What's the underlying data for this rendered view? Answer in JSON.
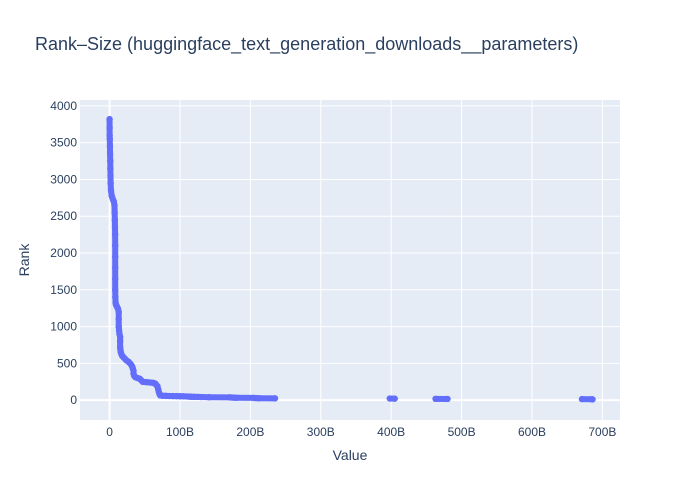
{
  "chart_data": {
    "type": "scatter",
    "title": "Rank–Size (huggingface_text_generation_downloads__parameters)",
    "xlabel": "Value",
    "ylabel": "Rank",
    "xlim": [
      -42000000000,
      725000000000
    ],
    "ylim": [
      -270,
      4080
    ],
    "x_ticks": [
      0,
      100000000000,
      200000000000,
      300000000000,
      400000000000,
      500000000000,
      600000000000,
      700000000000
    ],
    "x_tick_labels": [
      "0",
      "100B",
      "200B",
      "300B",
      "400B",
      "500B",
      "600B",
      "700B"
    ],
    "y_ticks": [
      0,
      500,
      1000,
      1500,
      2000,
      2500,
      3000,
      3500,
      4000
    ],
    "y_tick_labels": [
      "0",
      "500",
      "1000",
      "1500",
      "2000",
      "2500",
      "3000",
      "3500",
      "4000"
    ],
    "grid": true,
    "legend": "none",
    "colors": {
      "marker": "#636efa",
      "plot_bg": "#e5ecf6",
      "grid": "#ffffff",
      "text": "#2a3f5f"
    },
    "series": [
      {
        "points": [
          [
            0,
            3820
          ],
          [
            50000000,
            3700
          ],
          [
            100000000,
            3600
          ],
          [
            300000000,
            3550
          ],
          [
            500000000,
            3450
          ],
          [
            700000000,
            3350
          ],
          [
            1000000000,
            3250
          ],
          [
            1100000000,
            3150
          ],
          [
            1300000000,
            3050
          ],
          [
            1500000000,
            2950
          ],
          [
            2000000000,
            2850
          ],
          [
            3000000000,
            2780
          ],
          [
            4000000000,
            2750
          ],
          [
            5000000000,
            2720
          ],
          [
            6000000000,
            2700
          ],
          [
            7000000000,
            2650
          ],
          [
            7200000000,
            2550
          ],
          [
            7500000000,
            2450
          ],
          [
            7700000000,
            2350
          ],
          [
            7900000000,
            2250
          ],
          [
            8000000000,
            2100
          ],
          [
            8000000000,
            1950
          ],
          [
            8000000000,
            1800
          ],
          [
            8000000000,
            1650
          ],
          [
            8000000000,
            1500
          ],
          [
            8200000000,
            1400
          ],
          [
            8500000000,
            1330
          ],
          [
            9000000000,
            1300
          ],
          [
            10000000000,
            1280
          ],
          [
            11000000000,
            1260
          ],
          [
            12000000000,
            1240
          ],
          [
            13000000000,
            1200
          ],
          [
            13000000000,
            1100
          ],
          [
            13000000000,
            1000
          ],
          [
            13500000000,
            950
          ],
          [
            14000000000,
            900
          ],
          [
            15000000000,
            860
          ],
          [
            15000000000,
            800
          ],
          [
            15000000000,
            720
          ],
          [
            15500000000,
            680
          ],
          [
            16000000000,
            650
          ],
          [
            17000000000,
            620
          ],
          [
            18000000000,
            600
          ],
          [
            20000000000,
            580
          ],
          [
            22000000000,
            560
          ],
          [
            24000000000,
            540
          ],
          [
            27000000000,
            520
          ],
          [
            30000000000,
            490
          ],
          [
            32000000000,
            460
          ],
          [
            33000000000,
            430
          ],
          [
            34000000000,
            400
          ],
          [
            34000000000,
            360
          ],
          [
            35000000000,
            330
          ],
          [
            37000000000,
            310
          ],
          [
            40000000000,
            300
          ],
          [
            43000000000,
            290
          ],
          [
            45000000000,
            270
          ],
          [
            47000000000,
            250
          ],
          [
            52000000000,
            245
          ],
          [
            57000000000,
            240
          ],
          [
            62000000000,
            235
          ],
          [
            65000000000,
            225
          ],
          [
            66000000000,
            210
          ],
          [
            68000000000,
            190
          ],
          [
            69000000000,
            150
          ],
          [
            70000000000,
            110
          ],
          [
            71000000000,
            80
          ],
          [
            72000000000,
            65
          ],
          [
            75000000000,
            60
          ],
          [
            80000000000,
            58
          ],
          [
            85000000000,
            56
          ],
          [
            90000000000,
            55
          ],
          [
            95000000000,
            54
          ],
          [
            100000000000,
            53
          ],
          [
            105000000000,
            52
          ],
          [
            110000000000,
            50
          ],
          [
            113000000000,
            48
          ],
          [
            116000000000,
            46
          ],
          [
            120000000000,
            45
          ],
          [
            125000000000,
            44
          ],
          [
            130000000000,
            42
          ],
          [
            141000000000,
            40
          ],
          [
            170000000000,
            38
          ],
          [
            173000000000,
            36
          ],
          [
            176000000000,
            34
          ],
          [
            180000000000,
            32
          ],
          [
            205000000000,
            30
          ],
          [
            208000000000,
            28
          ],
          [
            212000000000,
            26
          ],
          [
            235000000000,
            24
          ],
          [
            398000000000,
            22
          ],
          [
            405000000000,
            20
          ],
          [
            463000000000,
            18
          ],
          [
            480000000000,
            16
          ],
          [
            671000000000,
            14
          ],
          [
            685000000000,
            12
          ],
          [
            686000000000,
            10
          ]
        ]
      }
    ]
  }
}
